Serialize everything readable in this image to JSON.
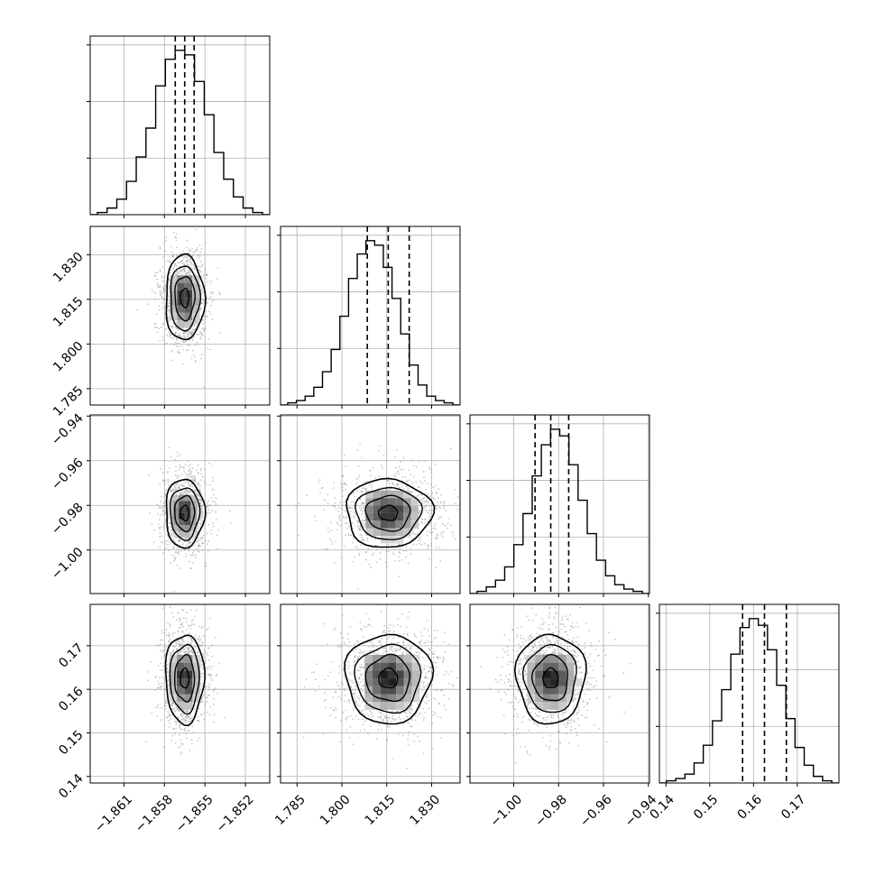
{
  "chart_data": {
    "type": "corner",
    "description_none": "",
    "grid": true,
    "quantile_lines": "dashed",
    "params": [
      {
        "id": "p0",
        "range": [
          -1.8635,
          -1.8502
        ],
        "ticks": [
          -1.861,
          -1.858,
          -1.855,
          -1.852
        ],
        "tick_labels": [
          "−1.861",
          "−1.858",
          "−1.855",
          "−1.852"
        ],
        "quantiles": [
          -1.8572,
          -1.8565,
          -1.8558
        ],
        "histogram": [
          1,
          3,
          7,
          15,
          26,
          39,
          58,
          70,
          74,
          72,
          60,
          45,
          28,
          16,
          8,
          3,
          1
        ]
      },
      {
        "id": "p1",
        "range": [
          1.7795,
          1.8395
        ],
        "ticks": [
          1.785,
          1.8,
          1.815,
          1.83
        ],
        "tick_labels": [
          "1.785",
          "1.800",
          "1.815",
          "1.830"
        ],
        "quantiles": [
          1.8085,
          1.8155,
          1.8225
        ],
        "histogram": [
          1,
          2,
          4,
          8,
          15,
          25,
          40,
          57,
          68,
          74,
          72,
          62,
          48,
          32,
          18,
          9,
          4,
          2,
          1
        ]
      },
      {
        "id": "p2",
        "range": [
          -1.0195,
          -0.9395
        ],
        "ticks": [
          -1.0,
          -0.98,
          -0.96,
          -0.94
        ],
        "tick_labels": [
          "−1.00",
          "−0.98",
          "−0.96",
          "−0.94"
        ],
        "quantiles": [
          -0.9905,
          -0.9835,
          -0.9755
        ],
        "histogram": [
          1,
          3,
          6,
          12,
          22,
          36,
          53,
          67,
          74,
          71,
          58,
          42,
          27,
          15,
          8,
          4,
          2,
          1
        ]
      },
      {
        "id": "p3",
        "range": [
          0.1385,
          0.1795
        ],
        "ticks": [
          0.14,
          0.15,
          0.16,
          0.17
        ],
        "tick_labels": [
          "0.14",
          "0.15",
          "0.16",
          "0.17"
        ],
        "quantiles": [
          0.1575,
          0.1625,
          0.1675
        ],
        "histogram": [
          1,
          2,
          4,
          9,
          17,
          28,
          42,
          58,
          70,
          74,
          71,
          60,
          44,
          29,
          16,
          8,
          3,
          1
        ]
      }
    ],
    "row_tick_labels_shown_for": [
      "p1",
      "p2",
      "p3"
    ],
    "bottom_tick_labels_shown_for": [
      "p0",
      "p1",
      "p2",
      "p3"
    ]
  }
}
